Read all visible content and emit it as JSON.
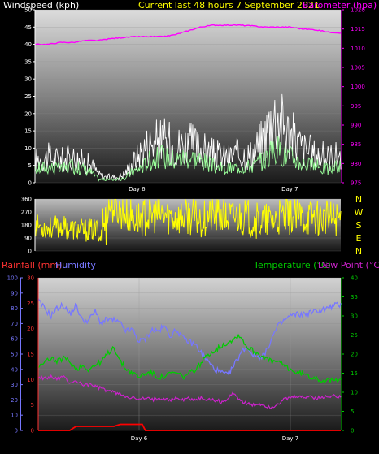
{
  "header": {
    "wind_title": "Windspeed (kph)",
    "main_title": "Current last 48 hours 7 September 2021",
    "baro_title": "Barometer (hpa)"
  },
  "colors": {
    "wind_title": "#ffffff",
    "main_title": "#ffff00",
    "baro": "#ff00ff",
    "gust": "#ffffff",
    "avg_wind": "#99ff99",
    "dir": "#ffff00",
    "rain": "#ff0000",
    "humidity": "#7777ff",
    "temp": "#00cc00",
    "dew": "#cc22cc",
    "compass": "#ffff00"
  },
  "chart_data": [
    {
      "type": "line",
      "name": "wind-barometer",
      "x_labels": [
        "Day 6",
        "Day 7"
      ],
      "x_label_positions_hours": [
        16,
        40
      ],
      "x_range_hours": [
        0,
        48
      ],
      "y_left": {
        "label": "Windspeed (kph)",
        "range": [
          0,
          50
        ],
        "ticks": [
          0,
          5,
          10,
          15,
          20,
          25,
          30,
          35,
          40,
          45,
          50
        ]
      },
      "y_right": {
        "label": "Barometer (hpa)",
        "range": [
          975,
          1020
        ],
        "ticks": [
          975,
          980,
          985,
          990,
          995,
          1000,
          1005,
          1010,
          1015,
          1020
        ]
      },
      "series": [
        {
          "name": "gust",
          "axis": "left",
          "x": [
            0,
            2,
            4,
            6,
            8,
            9,
            10,
            11,
            12,
            13,
            14,
            15,
            16,
            17,
            18,
            20,
            22,
            24,
            26,
            28,
            30,
            32,
            34,
            36,
            37,
            38,
            39,
            40,
            41,
            42,
            44,
            46,
            48
          ],
          "y": [
            8,
            9,
            8,
            9,
            7,
            6,
            3,
            2,
            2,
            2,
            3,
            6,
            9,
            12,
            14,
            15,
            13,
            14,
            12,
            10,
            9,
            10,
            10,
            16,
            22,
            24,
            20,
            17,
            15,
            12,
            10,
            9,
            10
          ]
        },
        {
          "name": "average",
          "axis": "left",
          "x": [
            0,
            2,
            4,
            6,
            8,
            9,
            10,
            11,
            12,
            13,
            14,
            15,
            16,
            17,
            18,
            20,
            22,
            24,
            26,
            28,
            30,
            32,
            34,
            36,
            37,
            38,
            39,
            40,
            41,
            42,
            44,
            46,
            48
          ],
          "y": [
            4,
            5,
            4,
            5,
            4,
            3,
            1,
            1,
            1,
            1,
            1,
            3,
            4,
            5,
            7,
            8,
            7,
            8,
            7,
            5,
            4,
            5,
            5,
            7,
            9,
            10,
            9,
            8,
            7,
            6,
            5,
            4,
            5
          ]
        },
        {
          "name": "barometer",
          "axis": "right",
          "x": [
            0,
            2,
            4,
            6,
            8,
            10,
            12,
            14,
            16,
            18,
            20,
            22,
            24,
            26,
            28,
            30,
            32,
            34,
            36,
            38,
            40,
            42,
            44,
            46,
            48
          ],
          "y": [
            1011,
            1011,
            1011.5,
            1011.5,
            1012,
            1012,
            1012.5,
            1012.8,
            1013,
            1013,
            1013,
            1013.5,
            1014.5,
            1015.5,
            1016,
            1016,
            1016,
            1015.8,
            1015.5,
            1015.5,
            1015.5,
            1015,
            1014.8,
            1014.2,
            1014
          ]
        }
      ]
    },
    {
      "type": "line",
      "name": "wind-direction",
      "x_range_hours": [
        0,
        48
      ],
      "y_left": {
        "range": [
          0,
          360
        ],
        "ticks": [
          0,
          90,
          180,
          270,
          360
        ]
      },
      "compass_labels": [
        "N",
        "W",
        "S",
        "E",
        "N"
      ],
      "series": [
        {
          "name": "direction",
          "x": [
            0,
            2,
            4,
            6,
            8,
            10,
            10.5,
            11,
            12,
            14,
            16,
            18,
            20,
            22,
            24,
            26,
            28,
            30,
            32,
            34,
            36,
            38,
            40,
            42,
            44,
            46,
            48
          ],
          "y": [
            180,
            160,
            170,
            150,
            140,
            150,
            20,
            300,
            320,
            260,
            220,
            240,
            250,
            230,
            240,
            220,
            250,
            230,
            240,
            220,
            200,
            220,
            240,
            230,
            240,
            220,
            230
          ]
        }
      ]
    },
    {
      "type": "line",
      "name": "rain-humidity-temperature",
      "legend": [
        "Rainfall (mm)",
        "Humidity",
        "Temperature (°C)",
        "Dew Point (°C)"
      ],
      "x_labels": [
        "Day 6",
        "Day 7"
      ],
      "x_label_positions_hours": [
        16,
        40
      ],
      "x_range_hours": [
        0,
        48
      ],
      "y_humidity": {
        "label": "Humidity",
        "range": [
          0,
          100
        ],
        "ticks": [
          0,
          10,
          20,
          30,
          40,
          50,
          60,
          70,
          80,
          90,
          100
        ]
      },
      "y_rain": {
        "label": "Rainfall (mm)",
        "range": [
          0,
          30
        ],
        "ticks": [
          0,
          5,
          10,
          15,
          20,
          25,
          30
        ]
      },
      "y_temp": {
        "label": "Temperature (°C)",
        "range": [
          0,
          40
        ],
        "ticks": [
          0,
          5,
          10,
          15,
          20,
          25,
          30,
          35,
          40
        ]
      },
      "series": [
        {
          "name": "rainfall",
          "axis": "rain",
          "x": [
            0,
            2,
            4,
            5,
            6,
            8,
            10,
            12,
            13,
            14,
            16,
            16.5,
            17,
            20,
            24,
            28,
            32,
            36,
            40,
            44,
            48
          ],
          "y": [
            0,
            0,
            0,
            0,
            0.8,
            0.8,
            0.8,
            0.8,
            1.2,
            1.2,
            1.2,
            1.2,
            0,
            0,
            0,
            0,
            0,
            0,
            0,
            0,
            0
          ]
        },
        {
          "name": "humidity",
          "axis": "humidity",
          "x": [
            0,
            1,
            2,
            3,
            4,
            5,
            6,
            7,
            8,
            9,
            10,
            11,
            12,
            13,
            14,
            15,
            16,
            17,
            18,
            19,
            20,
            21,
            22,
            23,
            24,
            25,
            26,
            27,
            28,
            29,
            30,
            31,
            32,
            33,
            34,
            35,
            36,
            37,
            38,
            39,
            40,
            41,
            42,
            43,
            44,
            45,
            46,
            47,
            48
          ],
          "y": [
            85,
            80,
            75,
            80,
            82,
            76,
            82,
            72,
            72,
            78,
            70,
            73,
            72,
            70,
            65,
            66,
            58,
            60,
            66,
            65,
            68,
            62,
            66,
            60,
            58,
            56,
            50,
            45,
            40,
            38,
            36,
            42,
            50,
            55,
            50,
            48,
            50,
            60,
            68,
            72,
            75,
            76,
            76,
            77,
            78,
            79,
            80,
            82,
            82
          ]
        },
        {
          "name": "temperature",
          "axis": "temp",
          "x": [
            0,
            1,
            2,
            3,
            4,
            5,
            6,
            7,
            8,
            9,
            10,
            11,
            12,
            13,
            14,
            15,
            16,
            17,
            18,
            19,
            20,
            21,
            22,
            23,
            24,
            25,
            26,
            27,
            28,
            29,
            30,
            31,
            32,
            33,
            34,
            35,
            36,
            37,
            38,
            39,
            40,
            41,
            42,
            43,
            44,
            45,
            46,
            47,
            48
          ],
          "y": [
            17,
            18,
            19,
            18,
            19,
            18,
            16,
            17,
            16,
            17,
            18,
            20,
            22,
            18,
            16,
            15,
            14,
            15,
            15,
            14,
            14,
            15,
            15,
            14,
            15,
            16,
            18,
            20,
            21,
            22,
            23,
            24,
            25,
            22,
            21,
            20,
            19,
            18,
            18,
            17,
            16,
            15,
            15,
            14,
            14,
            13,
            13,
            13,
            14
          ]
        },
        {
          "name": "dew_point",
          "axis": "temp",
          "x": [
            0,
            1,
            2,
            3,
            4,
            5,
            6,
            7,
            8,
            9,
            10,
            11,
            12,
            13,
            14,
            15,
            16,
            17,
            18,
            19,
            20,
            21,
            22,
            23,
            24,
            25,
            26,
            27,
            28,
            29,
            30,
            31,
            32,
            33,
            34,
            35,
            36,
            37,
            38,
            39,
            40,
            41,
            42,
            43,
            44,
            45,
            46,
            47,
            48
          ],
          "y": [
            14,
            13.5,
            14,
            13.5,
            14,
            12.5,
            13,
            12,
            12,
            11.5,
            11,
            10.5,
            10,
            9.5,
            9,
            8.5,
            8,
            8.5,
            8,
            8.5,
            8.5,
            8,
            8.5,
            8,
            8.5,
            8,
            8.5,
            8,
            8,
            7.5,
            8,
            10,
            8,
            7,
            6.5,
            7,
            6.5,
            6,
            7,
            8,
            8.5,
            9,
            8.5,
            9,
            8.5,
            8.5,
            9,
            9,
            9
          ]
        }
      ]
    }
  ]
}
